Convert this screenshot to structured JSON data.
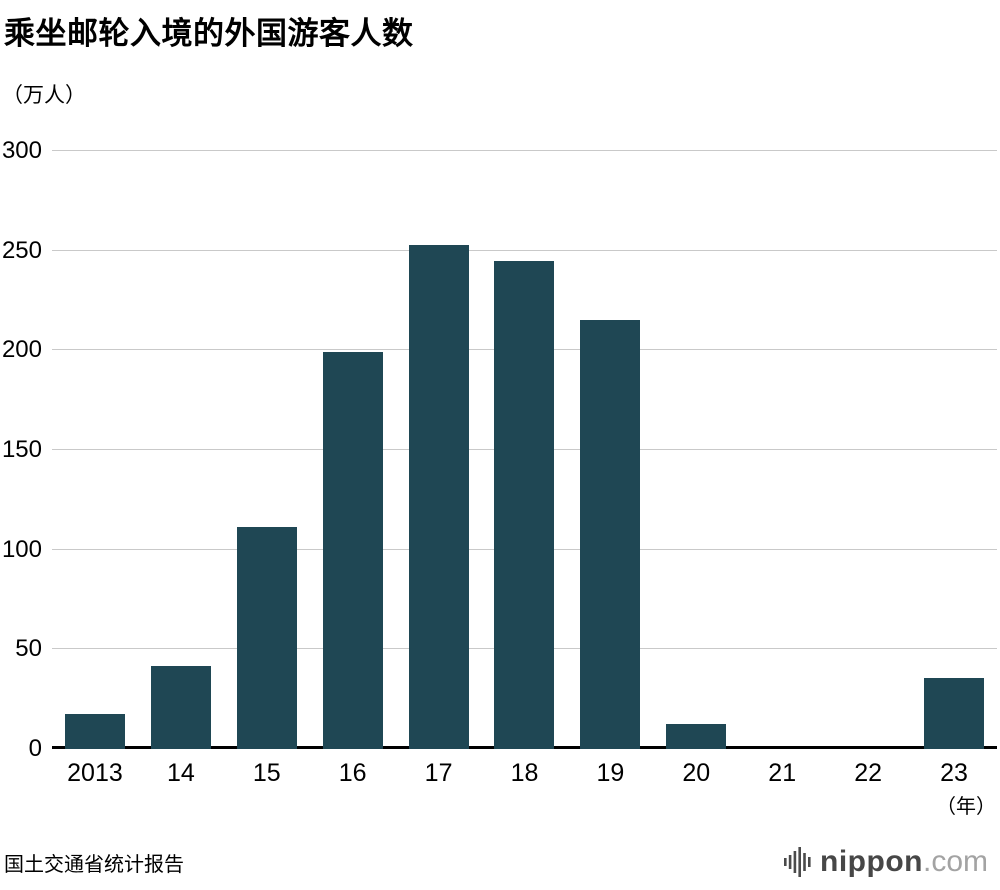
{
  "chart": {
    "title": "乘坐邮轮入境的外国游客人数",
    "y_unit": "（万人）",
    "x_unit": "（年）",
    "source": "国土交通省统计报告"
  },
  "logo": {
    "name": "nippon",
    "tld": ".com"
  },
  "chart_data": {
    "type": "bar",
    "title": "乘坐邮轮入境的外国游客人数",
    "categories": [
      "2013",
      "14",
      "15",
      "16",
      "17",
      "18",
      "19",
      "20",
      "21",
      "22",
      "23"
    ],
    "values": [
      17.4,
      41.6,
      111.6,
      199.2,
      252.9,
      244.6,
      215.3,
      12.6,
      0,
      0,
      35.6
    ],
    "xlabel": "（年）",
    "ylabel": "（万人）",
    "ylim": [
      0,
      300
    ],
    "yticks": [
      0,
      50,
      100,
      150,
      200,
      250,
      300
    ],
    "grid": true,
    "legend": false,
    "bar_color": "#1f4754"
  }
}
